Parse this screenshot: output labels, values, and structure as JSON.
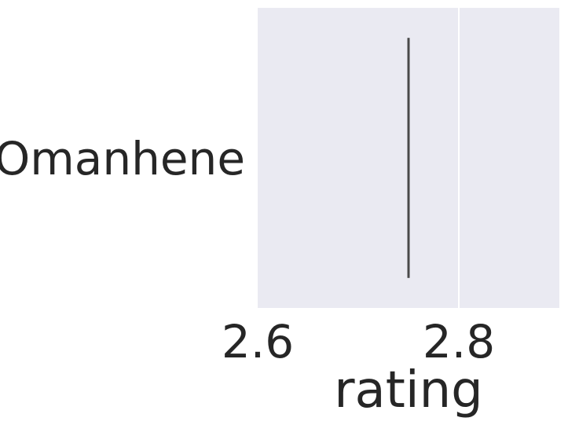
{
  "chart_data": {
    "type": "box",
    "orientation": "horizontal",
    "categories": [
      "Omanhene"
    ],
    "series": [
      {
        "values": [
          {
            "category": "Omanhene",
            "min": 2.75,
            "q1": 2.75,
            "median": 2.75,
            "q3": 2.75,
            "max": 2.75
          }
        ]
      }
    ],
    "xlabel": "rating",
    "ylabel": "",
    "xlim": [
      2.6,
      2.9
    ],
    "xticks": [
      2.6,
      2.8
    ],
    "xtick_labels": [
      "2.6",
      "2.8"
    ],
    "grid": true,
    "colors": {
      "plot_background": "#eaeaf2",
      "gridline": "#ffffff",
      "box_line": "#4a4a4a",
      "text": "#262626"
    }
  }
}
